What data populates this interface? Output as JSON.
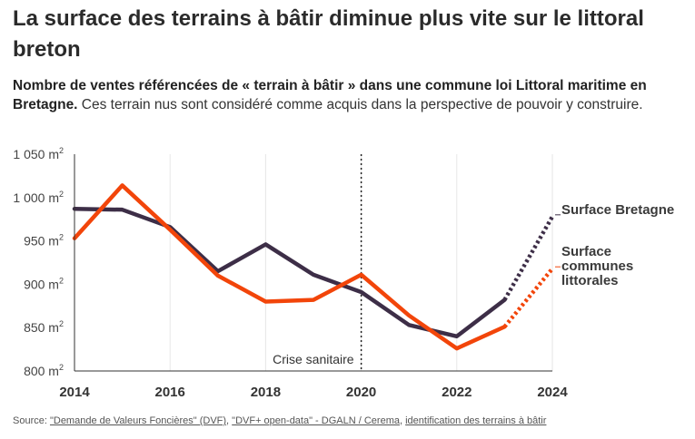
{
  "title": "La surface des terrains à bâtir diminue plus vite sur le littoral breton",
  "subtitle": {
    "bold": "Nombre de ventes référencées de « terrain à bâtir » dans une commune loi Littoral maritime en Bretagne.",
    "normal": " Ces terrain nus sont considéré comme acquis dans la perspective de pouvoir y construire."
  },
  "source": {
    "prefix": "Source: ",
    "link1": "\"Demande de Valeurs Foncières\" (DVF)",
    "sep1": ", ",
    "link2": "\"DVF+ open-data\" - DGALN / Cerema",
    "sep2": ", ",
    "link3": "identification des terrains à bâtir"
  },
  "chart_data": {
    "type": "line",
    "x": [
      2014,
      2015,
      2016,
      2017,
      2018,
      2019,
      2020,
      2021,
      2022,
      2023,
      2024
    ],
    "xticks": [
      2014,
      2016,
      2018,
      2020,
      2022,
      2024
    ],
    "xlim": [
      2014,
      2024
    ],
    "ylim": [
      800,
      1050
    ],
    "yticks": [
      800,
      850,
      900,
      950,
      1000,
      1050
    ],
    "yunit": "m",
    "yunit_sup": "2",
    "series": [
      {
        "name": "Surface Bretagne",
        "label_lines": [
          "Surface Bretagne"
        ],
        "color": "#3d2e47",
        "values": [
          987,
          986,
          966,
          915,
          946,
          911,
          891,
          853,
          840,
          882,
          978
        ],
        "dashed_from_index": 9
      },
      {
        "name": "Surface communes littorales",
        "label_lines": [
          "Surface",
          "communes",
          "littorales"
        ],
        "color": "#f2450a",
        "values": [
          953,
          1014,
          963,
          910,
          880,
          882,
          911,
          864,
          826,
          851,
          918
        ],
        "dashed_from_index": 9
      }
    ],
    "annotation": {
      "x": 2020,
      "text": "Crise sanitaire"
    }
  }
}
